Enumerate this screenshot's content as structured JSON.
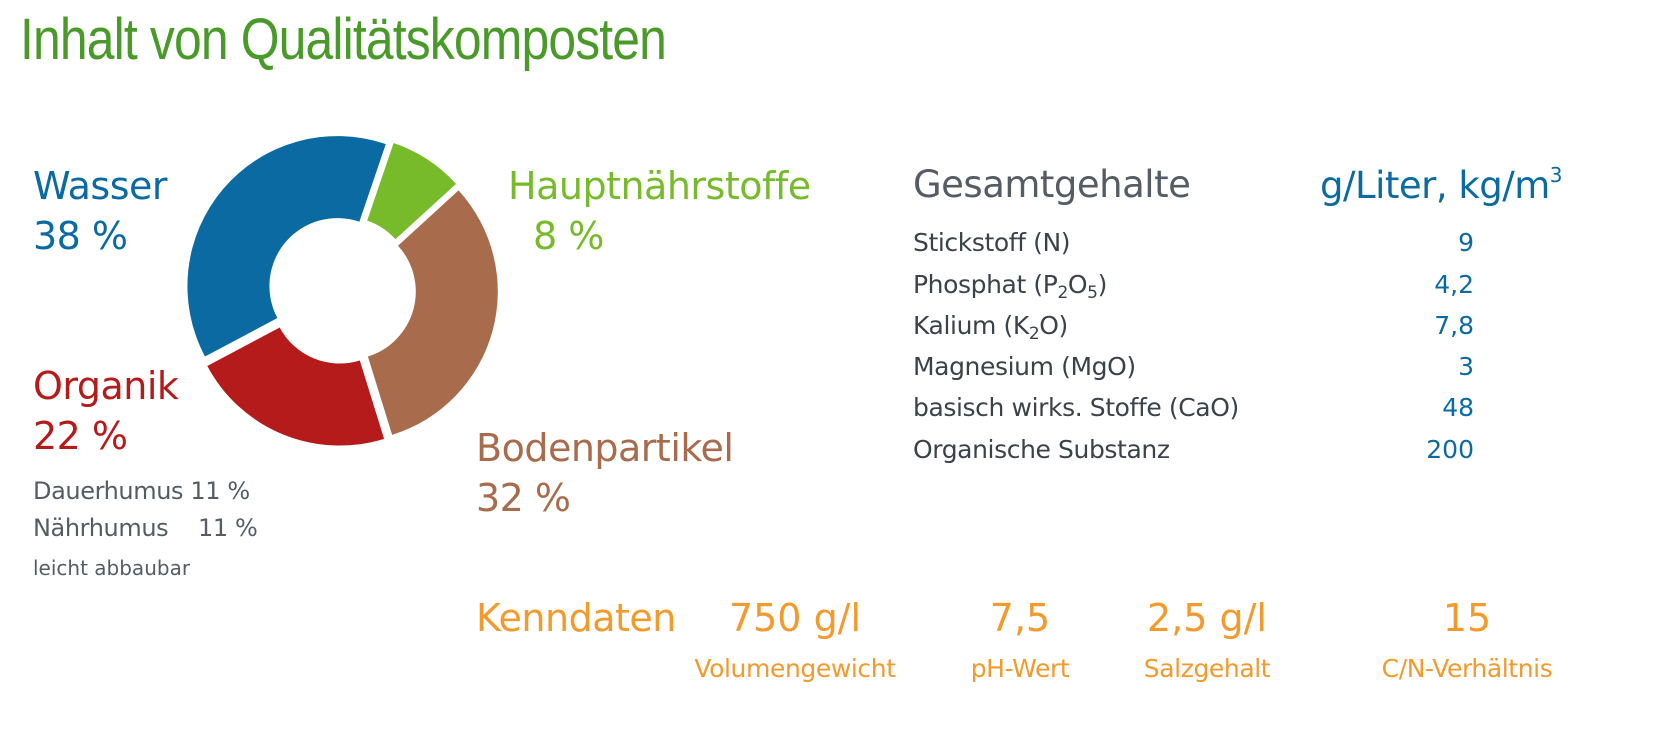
{
  "title": "Inhalt von Qualitätskomposten",
  "chart_data": {
    "type": "pie",
    "title": "Inhalt von Qualitätskomposten",
    "slices": [
      {
        "name": "Wasser",
        "value": 38,
        "label": "38 %",
        "color": "#0a6aa1"
      },
      {
        "name": "Hauptnährstoffe",
        "value": 8,
        "label": "8 %",
        "color": "#77bb2a"
      },
      {
        "name": "Bodenpartikel",
        "value": 32,
        "label": "32 %",
        "color": "#a86c4c"
      },
      {
        "name": "Organik",
        "value": 22,
        "label": "22 %",
        "color": "#b51b1a"
      }
    ],
    "organik_detail": [
      {
        "label": "Dauerhumus",
        "value": "11 %"
      },
      {
        "label": "Nährhumus",
        "value": "11 %"
      }
    ],
    "organik_note": "leicht abbaubar"
  },
  "table": {
    "header": "Gesamtgehalte",
    "unit_prefix": "g/Liter, kg/m",
    "unit_sup": "3",
    "rows": [
      {
        "label": "Stickstoff (N)",
        "value": "9"
      },
      {
        "label_a": "Phosphat (P",
        "sub1": "2",
        "label_b": "O",
        "sub2": "5",
        "label_c": ")",
        "value": "4,2"
      },
      {
        "label_a": "Kalium (K",
        "sub1": "2",
        "label_b": "O)",
        "value": "7,8"
      },
      {
        "label": "Magnesium (MgO)",
        "value": "3"
      },
      {
        "label": "basisch wirks. Stoffe (CaO)",
        "value": "48"
      },
      {
        "label": "Organische Substanz",
        "value": "200"
      }
    ]
  },
  "kenndaten": {
    "label": "Kenndaten",
    "items": [
      {
        "value": "750 g/l",
        "label": "Volumengewicht"
      },
      {
        "value": "7,5",
        "label": "pH-Wert"
      },
      {
        "value": "2,5 g/l",
        "label": "Salzgehalt"
      },
      {
        "value": "15",
        "label": "C/N-Verhältnis"
      }
    ]
  }
}
